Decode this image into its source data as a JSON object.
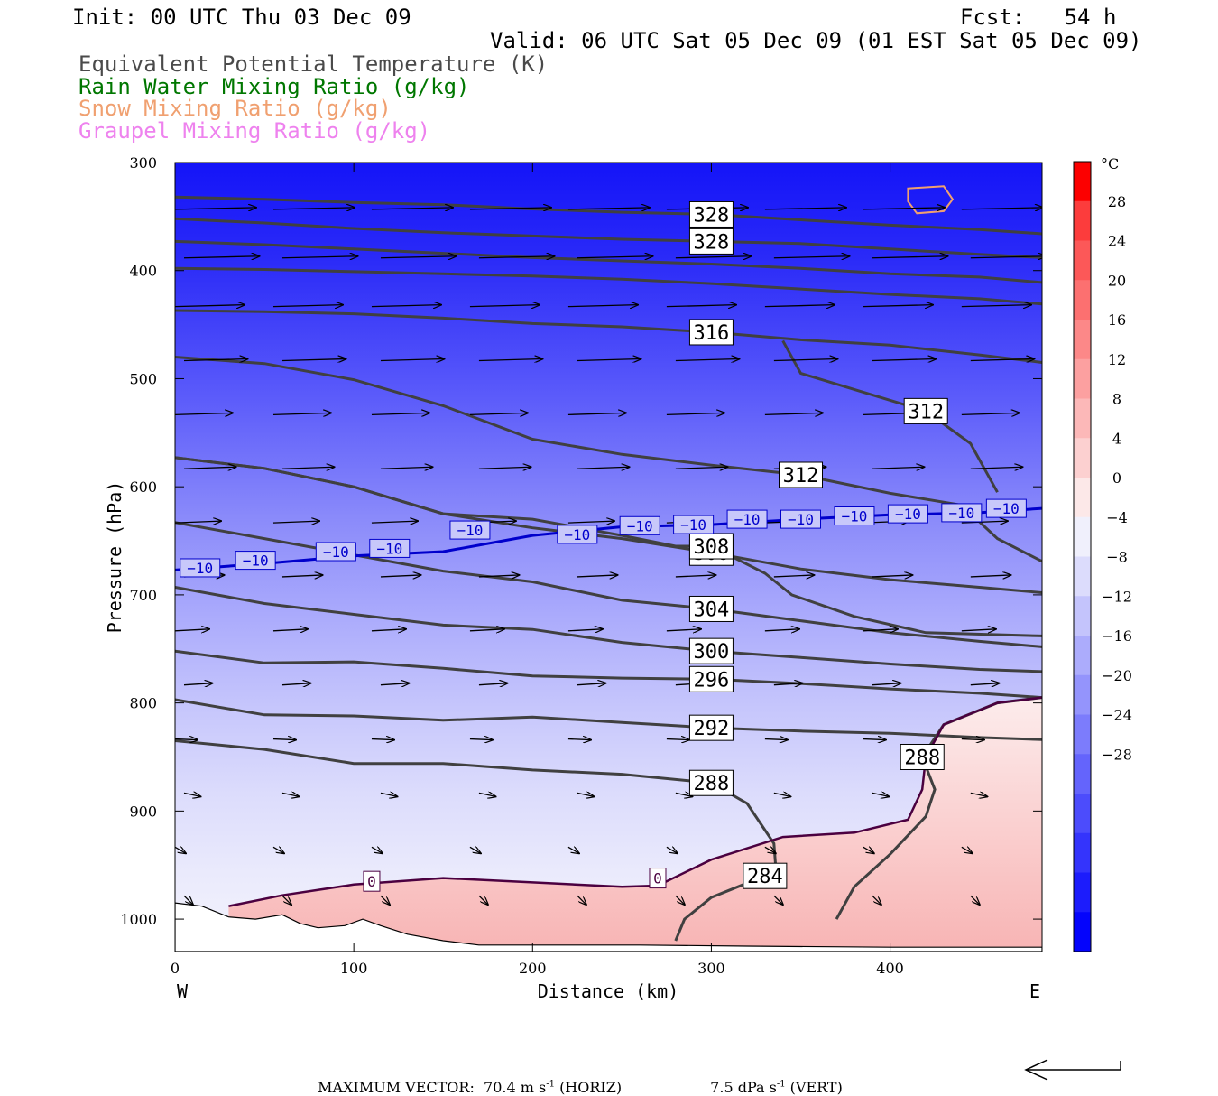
{
  "header": {
    "init": "Init: 00 UTC Thu 03 Dec 09",
    "fcst": "Fcst:   54 h",
    "valid": "Valid: 06 UTC Sat 05 Dec 09 (01 EST Sat 05 Dec 09)"
  },
  "legend": [
    {
      "text": "Equivalent Potential Temperature (K)",
      "color": "#4a4a4a"
    },
    {
      "text": "Rain Water Mixing Ratio (g/kg)",
      "color": "#007700"
    },
    {
      "text": "Snow Mixing Ratio (g/kg)",
      "color": "#f0a070"
    },
    {
      "text": "Graupel Mixing Ratio (g/kg)",
      "color": "#ee82ee"
    }
  ],
  "chart_data": {
    "type": "cross-section",
    "xlabel": "Distance (km)",
    "ylabel": "Pressure (hPa)",
    "x_range": [
      0,
      485
    ],
    "y_range_hPa": [
      300,
      1030
    ],
    "x_ticks": [
      0,
      100,
      200,
      300,
      400
    ],
    "y_ticks": [
      300,
      400,
      500,
      600,
      700,
      800,
      900,
      1000
    ],
    "x_end_labels": {
      "left": "W",
      "right": "E"
    },
    "colorbar": {
      "unit": "°C",
      "ticks": [
        28,
        24,
        20,
        16,
        12,
        8,
        4,
        0,
        -4,
        -8,
        -12,
        -16,
        -20,
        -24,
        -28
      ],
      "colors": [
        "#fc0000",
        "#fc3c3c",
        "#fc5858",
        "#fc7070",
        "#fc8888",
        "#fca0a0",
        "#fcb8b8",
        "#fcd0d0",
        "#fce8e8",
        "#f0f0fc",
        "#dcdcfc",
        "#c4c4fc",
        "#acacfc",
        "#9494fc",
        "#7c7cfc",
        "#6464fc",
        "#4c4cfc",
        "#3434fc",
        "#1c1cfc",
        "#0404fc"
      ]
    },
    "theta_e_contours": [
      {
        "label": "328",
        "points": [
          [
            0,
            332
          ],
          [
            50,
            334
          ],
          [
            100,
            337
          ],
          [
            150,
            339
          ],
          [
            200,
            343
          ],
          [
            250,
            346
          ],
          [
            300,
            348
          ],
          [
            350,
            353
          ],
          [
            400,
            358
          ],
          [
            450,
            362
          ],
          [
            485,
            366
          ]
        ]
      },
      {
        "label": "328",
        "points": [
          [
            0,
            352
          ],
          [
            50,
            356
          ],
          [
            100,
            361
          ],
          [
            150,
            365
          ],
          [
            200,
            368
          ],
          [
            250,
            371
          ],
          [
            300,
            373
          ],
          [
            350,
            375
          ],
          [
            400,
            380
          ],
          [
            450,
            385
          ],
          [
            485,
            388
          ]
        ]
      },
      {
        "label": "",
        "points": [
          [
            0,
            373
          ],
          [
            50,
            376
          ],
          [
            100,
            380
          ],
          [
            150,
            384
          ],
          [
            200,
            388
          ],
          [
            250,
            391
          ],
          [
            300,
            394
          ],
          [
            350,
            398
          ],
          [
            400,
            403
          ],
          [
            450,
            406
          ],
          [
            485,
            411
          ]
        ]
      },
      {
        "label": "",
        "points": [
          [
            0,
            398
          ],
          [
            50,
            399
          ],
          [
            100,
            401
          ],
          [
            150,
            403
          ],
          [
            200,
            405
          ],
          [
            250,
            408
          ],
          [
            300,
            412
          ],
          [
            350,
            417
          ],
          [
            400,
            422
          ],
          [
            450,
            426
          ],
          [
            485,
            431
          ]
        ]
      },
      {
        "label": "316",
        "points": [
          [
            0,
            437
          ],
          [
            50,
            438
          ],
          [
            100,
            440
          ],
          [
            150,
            444
          ],
          [
            200,
            449
          ],
          [
            250,
            452
          ],
          [
            300,
            457
          ],
          [
            350,
            464
          ],
          [
            400,
            469
          ],
          [
            450,
            478
          ],
          [
            485,
            485
          ]
        ]
      },
      {
        "label": "312",
        "points": [
          [
            0,
            480
          ],
          [
            50,
            486
          ],
          [
            100,
            501
          ],
          [
            150,
            525
          ],
          [
            200,
            556
          ],
          [
            250,
            570
          ],
          [
            300,
            580
          ],
          [
            350,
            589
          ],
          [
            400,
            606
          ],
          [
            440,
            617
          ],
          [
            460,
            648
          ],
          [
            485,
            669
          ]
        ]
      },
      {
        "label": "312",
        "points": [
          [
            340,
            465
          ],
          [
            350,
            495
          ],
          [
            380,
            510
          ],
          [
            420,
            530
          ],
          [
            445,
            560
          ],
          [
            460,
            605
          ]
        ]
      },
      {
        "label": "308",
        "points": [
          [
            0,
            573
          ],
          [
            50,
            583
          ],
          [
            100,
            600
          ],
          [
            150,
            625
          ],
          [
            200,
            638
          ],
          [
            250,
            648
          ],
          [
            300,
            661
          ],
          [
            350,
            676
          ],
          [
            400,
            686
          ],
          [
            450,
            693
          ],
          [
            485,
            698
          ]
        ]
      },
      {
        "label": "308",
        "points": [
          [
            0,
            573
          ],
          [
            50,
            583
          ],
          [
            100,
            600
          ],
          [
            150,
            625
          ],
          [
            200,
            630
          ],
          [
            250,
            645
          ],
          [
            280,
            655
          ],
          [
            300,
            655
          ],
          [
            330,
            680
          ],
          [
            345,
            700
          ],
          [
            380,
            720
          ],
          [
            420,
            735
          ],
          [
            485,
            738
          ]
        ]
      },
      {
        "label": "304",
        "points": [
          [
            0,
            633
          ],
          [
            50,
            648
          ],
          [
            100,
            663
          ],
          [
            150,
            678
          ],
          [
            200,
            688
          ],
          [
            250,
            705
          ],
          [
            300,
            713
          ],
          [
            350,
            724
          ],
          [
            400,
            735
          ],
          [
            450,
            743
          ],
          [
            485,
            748
          ]
        ]
      },
      {
        "label": "300",
        "points": [
          [
            0,
            693
          ],
          [
            50,
            708
          ],
          [
            100,
            718
          ],
          [
            150,
            728
          ],
          [
            200,
            732
          ],
          [
            250,
            744
          ],
          [
            300,
            752
          ],
          [
            350,
            758
          ],
          [
            400,
            764
          ],
          [
            450,
            769
          ],
          [
            485,
            771
          ]
        ]
      },
      {
        "label": "296",
        "points": [
          [
            0,
            752
          ],
          [
            50,
            763
          ],
          [
            100,
            762
          ],
          [
            150,
            768
          ],
          [
            200,
            775
          ],
          [
            250,
            777
          ],
          [
            300,
            778
          ],
          [
            350,
            782
          ],
          [
            400,
            787
          ],
          [
            450,
            791
          ],
          [
            485,
            795
          ]
        ]
      },
      {
        "label": "292",
        "points": [
          [
            0,
            797
          ],
          [
            50,
            811
          ],
          [
            100,
            812
          ],
          [
            150,
            816
          ],
          [
            200,
            813
          ],
          [
            250,
            818
          ],
          [
            300,
            823
          ],
          [
            350,
            826
          ],
          [
            400,
            828
          ],
          [
            450,
            832
          ],
          [
            485,
            834
          ]
        ]
      },
      {
        "label": "288",
        "points": [
          [
            0,
            835
          ],
          [
            50,
            843
          ],
          [
            100,
            856
          ],
          [
            150,
            856
          ],
          [
            200,
            862
          ],
          [
            250,
            866
          ],
          [
            300,
            874
          ],
          [
            320,
            893
          ],
          [
            335,
            930
          ],
          [
            336,
            952
          ],
          [
            340,
            970
          ]
        ]
      },
      {
        "label": "284",
        "points": [
          [
            280,
            1020
          ],
          [
            285,
            1000
          ],
          [
            300,
            980
          ],
          [
            330,
            960
          ],
          [
            335,
            950
          ]
        ]
      },
      {
        "label": "288",
        "points": [
          [
            370,
            1000
          ],
          [
            380,
            970
          ],
          [
            400,
            940
          ],
          [
            420,
            905
          ],
          [
            425,
            880
          ],
          [
            418,
            850
          ],
          [
            430,
            820
          ],
          [
            460,
            800
          ],
          [
            485,
            795
          ]
        ]
      }
    ],
    "freezing_contour": {
      "label": "0",
      "points": [
        [
          30,
          988
        ],
        [
          60,
          978
        ],
        [
          100,
          968
        ],
        [
          150,
          962
        ],
        [
          200,
          966
        ],
        [
          250,
          970
        ],
        [
          270,
          969
        ],
        [
          300,
          945
        ],
        [
          340,
          924
        ],
        [
          380,
          920
        ],
        [
          410,
          908
        ],
        [
          418,
          880
        ],
        [
          420,
          850
        ],
        [
          430,
          820
        ],
        [
          460,
          800
        ],
        [
          485,
          795
        ]
      ]
    },
    "temp_contour": {
      "label": "−10",
      "points": [
        [
          0,
          677
        ],
        [
          50,
          671
        ],
        [
          100,
          664
        ],
        [
          150,
          660
        ],
        [
          200,
          645
        ],
        [
          250,
          637
        ],
        [
          300,
          635
        ],
        [
          350,
          630
        ],
        [
          400,
          626
        ],
        [
          450,
          624
        ],
        [
          485,
          620
        ]
      ]
    },
    "snow_contour_km_hPa": [
      [
        410,
        324
      ],
      [
        430,
        322
      ],
      [
        435,
        334
      ],
      [
        430,
        345
      ],
      [
        415,
        347
      ],
      [
        410,
        336
      ]
    ],
    "wind_rows_hPa": [
      340,
      385,
      430,
      480,
      530,
      580,
      630,
      680,
      730,
      780,
      830,
      880,
      930,
      975
    ],
    "wind_cols_km": [
      0,
      55,
      110,
      165,
      220,
      275,
      330,
      385,
      440
    ],
    "footer": {
      "max_vector_label": "MAXIMUM VECTOR:",
      "horiz_value": "70.4 m s",
      "horiz_unit": "(HORIZ)",
      "vert_value": "7.5 dPa s",
      "vert_unit": "(VERT)",
      "superscript": "-1"
    }
  }
}
